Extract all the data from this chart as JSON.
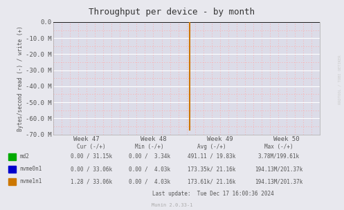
{
  "title": "Throughput per device - by month",
  "ylabel": "Bytes/second read (-) / write (+)",
  "ylim": [
    -70000000,
    0
  ],
  "yticks": [
    0,
    -10000000,
    -20000000,
    -30000000,
    -40000000,
    -50000000,
    -60000000,
    -70000000
  ],
  "ytick_labels": [
    "0.0",
    "-10.0 M",
    "-20.0 M",
    "-30.0 M",
    "-40.0 M",
    "-50.0 M",
    "-60.0 M",
    "-70.0 M"
  ],
  "xlim": [
    0,
    4
  ],
  "xtick_positions": [
    0.5,
    1.5,
    2.5,
    3.5
  ],
  "xtick_labels": [
    "Week 47",
    "Week 48",
    "Week 49",
    "Week 50"
  ],
  "bg_color": "#e8e8ee",
  "plot_bg_color": "#dcdce8",
  "grid_color_white": "#ffffff",
  "grid_color_pink": "#ffaaaa",
  "spike_x": 2.05,
  "spike_y": -67000000,
  "spike_color": "#cc7700",
  "zero_line_color": "#000000",
  "side_label": "RRDTOOL / TOBI OETIKER",
  "font_color": "#555555",
  "title_color": "#333333",
  "legend_items": [
    {
      "label": "md2",
      "color": "#00aa00"
    },
    {
      "label": "nvme0n1",
      "color": "#0000cc"
    },
    {
      "label": "nvme1n1",
      "color": "#cc7700"
    }
  ],
  "table_cols": [
    "Cur (-/+)",
    "Min (-/+)",
    "Avg (-/+)",
    "Max (-/+)"
  ],
  "table_data": [
    [
      "0.00 / 31.15k",
      "0.00 /  3.34k",
      "491.11 / 19.83k",
      "3.78M/199.61k"
    ],
    [
      "0.00 / 33.06k",
      "0.00 /  4.03k",
      "173.35k/ 21.16k",
      "194.13M/201.37k"
    ],
    [
      "1.28 / 33.06k",
      "0.00 /  4.03k",
      "173.61k/ 21.16k",
      "194.13M/201.37k"
    ]
  ],
  "last_update": "Last update:  Tue Dec 17 16:00:36 2024",
  "munin_label": "Munin 2.0.33-1"
}
